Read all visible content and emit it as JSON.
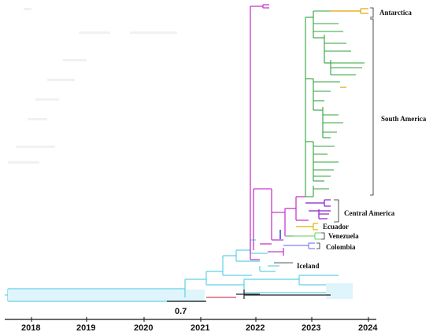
{
  "figure": {
    "scale_bar_label": "0.7",
    "colors": {
      "south_america": "#2fa33a",
      "antarctica": "#e2a400",
      "central_america": "#8a1fc4",
      "ecuador": "#e0b400",
      "venezuela": "#7dd87d",
      "colombia": "#7f7ff0",
      "iceland": "#5fd0e8",
      "backbone": "#c63ac9",
      "older": "#5fd0e8",
      "dark": "#222222",
      "scale": "#111111"
    }
  },
  "regions": {
    "antarctica": "Antarctica",
    "south_america": "South America",
    "central_america": "Central America",
    "ecuador": "Ecuador",
    "venezuela": "Venezuela",
    "colombia": "Colombia",
    "iceland": "Iceland"
  },
  "time_axis": {
    "years": [
      "2018",
      "2019",
      "2020",
      "2021",
      "2022",
      "2023",
      "2024"
    ]
  }
}
